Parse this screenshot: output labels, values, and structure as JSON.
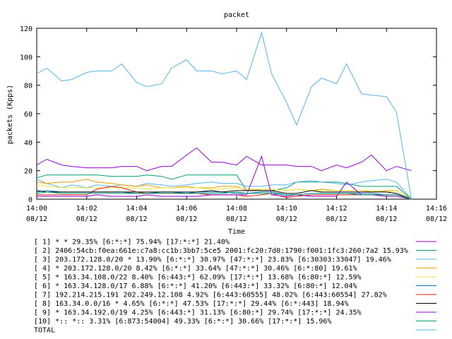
{
  "chart_data": {
    "type": "line",
    "title": "packet",
    "xlabel": "Time",
    "ylabel": "packets (Kpps)",
    "ylim": [
      0,
      120
    ],
    "yticks": [
      0,
      20,
      40,
      60,
      80,
      100,
      120
    ],
    "xlim": [
      0,
      16
    ],
    "xticks": [
      {
        "v": 0,
        "line1": "14:00",
        "line2": "08/12"
      },
      {
        "v": 2,
        "line1": "14:02",
        "line2": "08/12"
      },
      {
        "v": 4,
        "line1": "14:04",
        "line2": "08/12"
      },
      {
        "v": 6,
        "line1": "14:06",
        "line2": "08/12"
      },
      {
        "v": 8,
        "line1": "14:08",
        "line2": "08/12"
      },
      {
        "v": 10,
        "line1": "14:10",
        "line2": "08/12"
      },
      {
        "v": 12,
        "line1": "14:12",
        "line2": "08/12"
      },
      {
        "v": 14,
        "line1": "14:14",
        "line2": "08/12"
      },
      {
        "v": 16,
        "line1": "14:16",
        "line2": "08/12"
      }
    ],
    "x": [
      0,
      0.4,
      1,
      1.4,
      2,
      2.4,
      3,
      3.4,
      4,
      4.4,
      5,
      5.4,
      6,
      6.4,
      7,
      7.4,
      8,
      8.4,
      9,
      9.4,
      10,
      10.4,
      11,
      11.4,
      12,
      12.4,
      13,
      13.4,
      14,
      14.4,
      15
    ],
    "series": [
      {
        "name": "[ 1] * * 29.35%  [6:*:*] 75.94% [17:*:*] 21.40%",
        "color": "#9400d3",
        "values": [
          24,
          28,
          24,
          23,
          22,
          22,
          22,
          23,
          23,
          20,
          23,
          23,
          31,
          36,
          26,
          26,
          24,
          30,
          24,
          24,
          24,
          23,
          23,
          20,
          24,
          22,
          26,
          31,
          20,
          23,
          20
        ]
      },
      {
        "name": "[ 2] 2406:54cb:f0ea:661e:c7a8:cc1b:3bb7:5ce5 2001:fc20:7d0:1790:f001:1fc3:260:7a2 15.93%",
        "color": "#009e73",
        "values": [
          15,
          17,
          17,
          17,
          17,
          17,
          16,
          16,
          16,
          17,
          16,
          14,
          17,
          17,
          17,
          17,
          17,
          6,
          6,
          6,
          8,
          12,
          12,
          12,
          12,
          11,
          9,
          9,
          9,
          9,
          0
        ]
      },
      {
        "name": "[ 3] 203.172.128.0/20 * 13.90%  [6:*:*] 30.97% [47:*:*] 23.83% [6:30303:33047] 19.46%",
        "color": "#56b4e9",
        "values": [
          14,
          11,
          8,
          10,
          8,
          10,
          9,
          10,
          9,
          11,
          10,
          9,
          10,
          11,
          12,
          11,
          11,
          9,
          9,
          10,
          10,
          12,
          13,
          12,
          11,
          10,
          12,
          13,
          14,
          12,
          0
        ]
      },
      {
        "name": "[ 4] * 203.172.128.0/20 8.42%  [6:*:*] 33.64% [47:*:*] 30.46% [6:*:80] 19.61%",
        "color": "#e69f00",
        "values": [
          12,
          11,
          12,
          12,
          14,
          12,
          11,
          10,
          9,
          10,
          8,
          8,
          9,
          8,
          8,
          9,
          9,
          6,
          7,
          7,
          6,
          7,
          6,
          7,
          6,
          6,
          6,
          5,
          6,
          6,
          0
        ]
      },
      {
        "name": "[ 5] * 163.34.108.0/22 8.40%  [6:443:*] 62.09% [17:*:*] 13.68% [6:80:*] 12.59%",
        "color": "#f0e442",
        "values": [
          10,
          9,
          8,
          8,
          8,
          8,
          8,
          8,
          8,
          7,
          8,
          8,
          8,
          8,
          7,
          7,
          8,
          7,
          7,
          7,
          6,
          7,
          6,
          6,
          6,
          6,
          6,
          6,
          5,
          6,
          0
        ]
      },
      {
        "name": "[ 6] * 163.34.128.0/17 6.88%  [6:*:*] 41.20% [6:443:*] 33.32% [6:80:*] 12.04%",
        "color": "#0072b2",
        "values": [
          5,
          6,
          5,
          5,
          5,
          5,
          5,
          5,
          4,
          4,
          5,
          5,
          4,
          5,
          5,
          5,
          4,
          4,
          5,
          5,
          3,
          3,
          4,
          4,
          4,
          4,
          4,
          4,
          3,
          3,
          0
        ]
      },
      {
        "name": "[ 7] 192.214.215.191 202.249.12.108 4.92%  [6:443:60555] 48.02% [6:443:60554] 27.82%",
        "color": "#e51e10",
        "values": [
          3,
          3,
          3,
          3,
          3,
          7,
          9,
          8,
          5,
          4,
          4,
          4,
          4,
          4,
          3,
          3,
          3,
          2,
          3,
          4,
          1,
          2,
          3,
          3,
          3,
          3,
          3,
          3,
          3,
          3,
          0
        ]
      },
      {
        "name": "[ 8] 163.34.0.0/16 * 4.65%  [6:*:*] 47.53% [17:*:*] 29.44% [6:*:443] 18.94%",
        "color": "#000000",
        "values": [
          6,
          5,
          5,
          5,
          5,
          5,
          5,
          5,
          5,
          5,
          5,
          5,
          5,
          5,
          6,
          5,
          6,
          6,
          6,
          6,
          4,
          4,
          6,
          5,
          5,
          5,
          5,
          5,
          5,
          4,
          0
        ]
      },
      {
        "name": "[ 9] * 163.34.192.0/19 4.25%  [6:443:*] 31.13% [6:80:*] 29.74% [17:*:*] 24.35%",
        "color": "#9400d3",
        "values": [
          2,
          2,
          2,
          2,
          2,
          3,
          2,
          2,
          2,
          3,
          2,
          2,
          2,
          2,
          3,
          3,
          3,
          3,
          30,
          3,
          2,
          3,
          2,
          2,
          2,
          12,
          3,
          3,
          2,
          2,
          0
        ]
      },
      {
        "name": "[10] *:: *:: 3.31%  [6:873:54004] 49.33% [6:*:*] 30.66% [17:*:*] 15.96%",
        "color": "#009e73",
        "values": [
          4,
          5,
          4,
          4,
          4,
          4,
          4,
          4,
          4,
          4,
          4,
          4,
          4,
          4,
          4,
          4,
          5,
          4,
          4,
          4,
          3,
          3,
          4,
          4,
          4,
          4,
          3,
          3,
          3,
          3,
          0
        ]
      },
      {
        "name": "TOTAL",
        "color": "#56b4e9",
        "values": [
          88,
          92,
          83,
          84,
          89,
          90,
          90,
          95,
          82,
          79,
          81,
          92,
          98,
          90,
          90,
          88,
          90,
          84,
          117,
          88,
          68,
          52,
          79,
          85,
          81,
          95,
          74,
          73,
          72,
          61,
          0
        ]
      }
    ]
  }
}
